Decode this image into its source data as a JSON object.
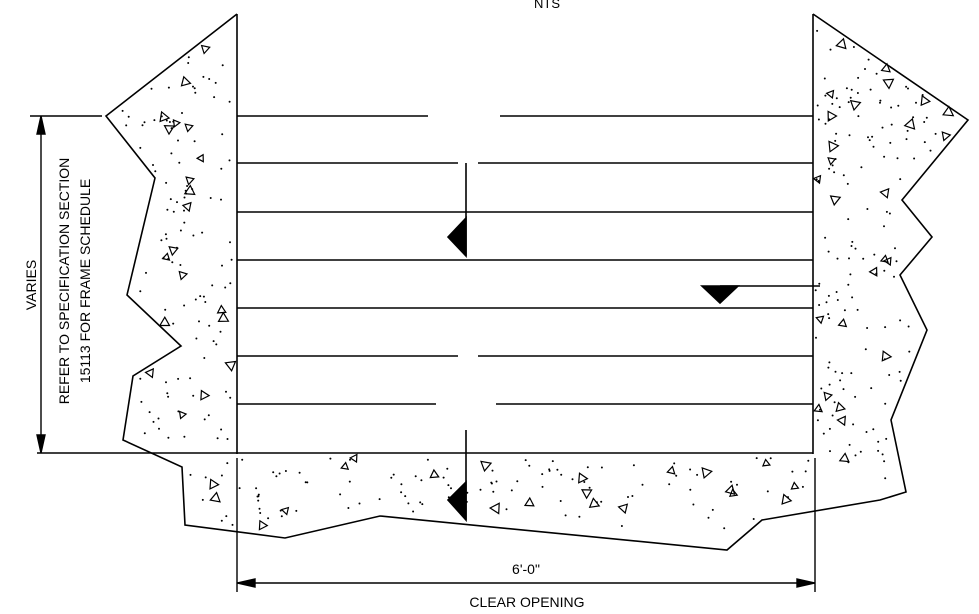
{
  "drawing": {
    "scale_note": "NTS",
    "width_dimension": "6'-0\"",
    "width_label": "CLEAR OPENING",
    "height_dimension": "VARIES",
    "reference_note_line1": "REFER TO SPECIFICATION SECTION",
    "reference_note_line2": "15113 FOR FRAME SCHEDULE",
    "colors": {
      "line": "#000000",
      "background": "#ffffff"
    }
  }
}
